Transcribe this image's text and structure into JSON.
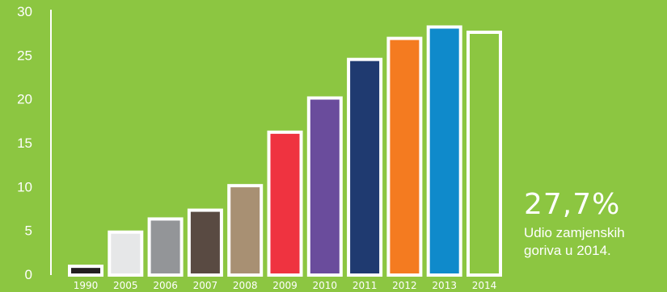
{
  "chart_data": {
    "type": "bar",
    "categories": [
      "1990",
      "2005",
      "2006",
      "2007",
      "2008",
      "2009",
      "2010",
      "2011",
      "2012",
      "2013",
      "2014"
    ],
    "values": [
      1.0,
      4.9,
      6.4,
      7.4,
      10.2,
      16.3,
      20.2,
      24.6,
      27.0,
      28.3,
      27.7
    ],
    "colors": [
      "#231f20",
      "#e6e7e8",
      "#939598",
      "#594a42",
      "#a89073",
      "#ef3340",
      "#6a4c9c",
      "#1f3a70",
      "#f47b20",
      "#0f8acb",
      "#8cc641"
    ],
    "ylim": [
      0,
      30
    ],
    "yticks": [
      0,
      5,
      10,
      15,
      20,
      25,
      30
    ],
    "grid": false,
    "title": "",
    "xlabel": "",
    "ylabel": ""
  },
  "callout": {
    "value": "27,7%",
    "caption_line1": "Udio zamjenskih",
    "caption_line2": "goriva u 2014."
  }
}
